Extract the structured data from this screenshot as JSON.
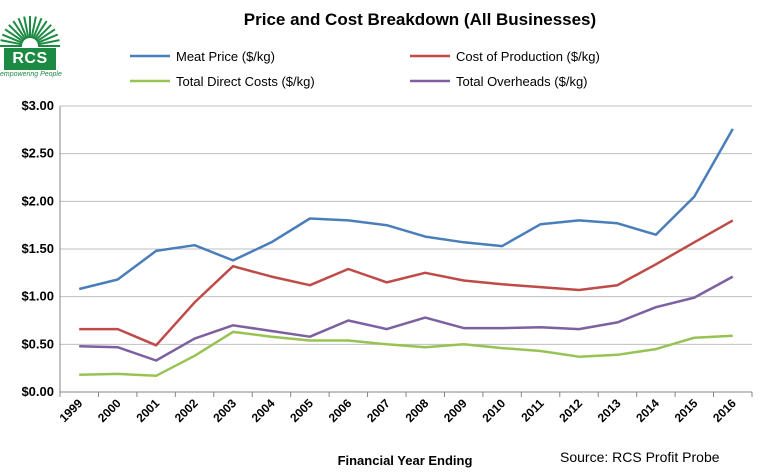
{
  "logo": {
    "text": "RCS",
    "tagline": "empowering People",
    "color": "#1c8a43"
  },
  "chart_data": {
    "type": "line",
    "title": "Price and Cost Breakdown (All Businesses)",
    "xlabel": "Financial Year Ending",
    "ylabel": "",
    "source": "Source: RCS Profit Probe",
    "categories": [
      "1999",
      "2000",
      "2001",
      "2002",
      "2003",
      "2004",
      "2005",
      "2006",
      "2007",
      "2008",
      "2009",
      "2010",
      "2011",
      "2012",
      "2013",
      "2014",
      "2015",
      "2016"
    ],
    "ylim": [
      0,
      3
    ],
    "yticks": [
      0,
      0.5,
      1,
      1.5,
      2,
      2.5,
      3
    ],
    "ytick_labels": [
      "$0.00",
      "$0.50",
      "$1.00",
      "$1.50",
      "$2.00",
      "$2.50",
      "$3.00"
    ],
    "grid": true,
    "legend_position": "top",
    "series": [
      {
        "name": "Meat Price ($/kg)",
        "color": "#4a7ebb",
        "values": [
          1.08,
          1.18,
          1.48,
          1.54,
          1.38,
          1.57,
          1.82,
          1.8,
          1.75,
          1.63,
          1.57,
          1.53,
          1.76,
          1.8,
          1.77,
          1.65,
          2.05,
          2.76
        ]
      },
      {
        "name": "Cost of Production ($/kg)",
        "color": "#be4b48",
        "values": [
          0.66,
          0.66,
          0.49,
          0.94,
          1.32,
          1.21,
          1.12,
          1.29,
          1.15,
          1.25,
          1.17,
          1.13,
          1.1,
          1.07,
          1.12,
          1.34,
          1.57,
          1.8
        ]
      },
      {
        "name": "Total Direct Costs ($/kg)",
        "color": "#98c354",
        "values": [
          0.18,
          0.19,
          0.17,
          0.38,
          0.63,
          0.58,
          0.54,
          0.54,
          0.5,
          0.47,
          0.5,
          0.46,
          0.43,
          0.37,
          0.39,
          0.45,
          0.57,
          0.59
        ]
      },
      {
        "name": "Total Overheads ($/kg)",
        "color": "#7d60a0",
        "values": [
          0.48,
          0.47,
          0.33,
          0.56,
          0.7,
          0.64,
          0.58,
          0.75,
          0.66,
          0.78,
          0.67,
          0.67,
          0.68,
          0.66,
          0.73,
          0.89,
          0.99,
          1.21
        ]
      }
    ]
  }
}
